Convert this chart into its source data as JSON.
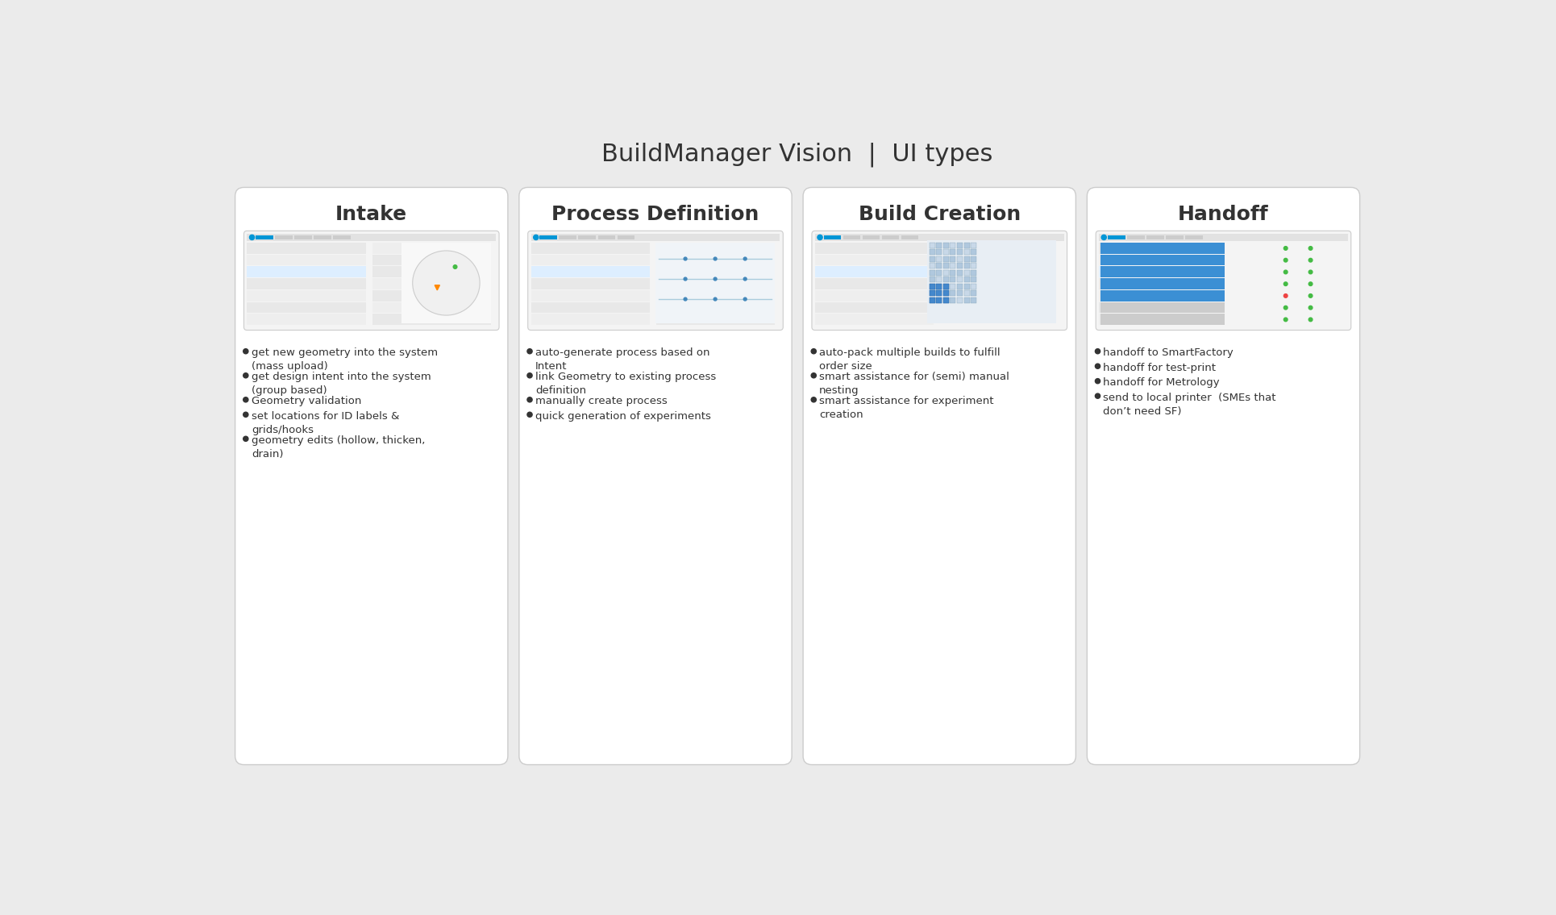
{
  "title": "BuildManager Vision  |  UI types",
  "title_color": "#333333",
  "title_fontsize": 22,
  "bg_color": "#ebebeb",
  "card_bg": "#ffffff",
  "card_border": "#cccccc",
  "dot_color": "#333333",
  "bullet_color": "#333333",
  "screenshot_inner": "#f4f4f4",
  "screenshot_border": "#cccccc",
  "cards": [
    {
      "title": "Intake",
      "bullets": [
        "get new geometry into the system\n(mass upload)",
        "get design intent into the system\n(group based)",
        "Geometry validation",
        "set locations for ID labels &\ngrids/hooks",
        "geometry edits (hollow, thicken,\ndrain)"
      ]
    },
    {
      "title": "Process Definition",
      "bullets": [
        "auto-generate process based on\nIntent",
        "link Geometry to existing process\ndefinition",
        "manually create process",
        "quick generation of experiments"
      ]
    },
    {
      "title": "Build Creation",
      "bullets": [
        "auto-pack multiple builds to fulfill\norder size",
        "smart assistance for (semi) manual\nnesting",
        "smart assistance for experiment\ncreation"
      ]
    },
    {
      "title": "Handoff",
      "bullets": [
        "handoff to SmartFactory",
        "handoff for test-print",
        "handoff for Metrology",
        "send to local printer  (SMEs that\ndon’t need SF)"
      ]
    }
  ]
}
